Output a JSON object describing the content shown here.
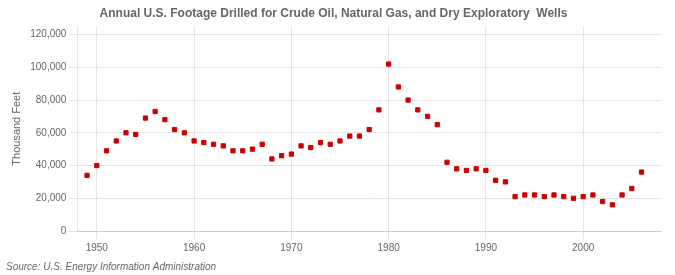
{
  "chart_data": {
    "type": "scatter",
    "title": "Annual U.S. Footage Drilled for Crude Oil, Natural Gas, and Dry Exploratory  Wells",
    "ylabel": "Thousand Feet",
    "annotations": [
      "Source: U.S. Energy Information Administration"
    ],
    "x": [
      1949,
      1950,
      1951,
      1952,
      1953,
      1954,
      1955,
      1956,
      1957,
      1958,
      1959,
      1960,
      1961,
      1962,
      1963,
      1964,
      1965,
      1966,
      1967,
      1968,
      1969,
      1970,
      1971,
      1972,
      1973,
      1974,
      1975,
      1976,
      1977,
      1978,
      1979,
      1980,
      1981,
      1982,
      1983,
      1984,
      1985,
      1986,
      1987,
      1988,
      1989,
      1990,
      1991,
      1992,
      1993,
      1994,
      1995,
      1996,
      1997,
      1998,
      1999,
      2000,
      2001,
      2002,
      2003,
      2004,
      2005,
      2006
    ],
    "values": [
      34000,
      40000,
      49000,
      55000,
      60000,
      59000,
      69000,
      73000,
      68000,
      62000,
      60000,
      55000,
      54000,
      53000,
      52000,
      49000,
      49000,
      50000,
      53000,
      44000,
      46000,
      47000,
      52000,
      51000,
      54000,
      53000,
      55000,
      58000,
      58000,
      62000,
      74000,
      102000,
      88000,
      80000,
      74000,
      70000,
      65000,
      42000,
      38000,
      37000,
      38000,
      37000,
      31000,
      30000,
      21000,
      22000,
      22000,
      21000,
      22000,
      21000,
      20000,
      21000,
      22000,
      18000,
      16000,
      22000,
      26000,
      36000
    ],
    "color": "#CC0000",
    "marker": "square",
    "xlim": [
      1948,
      2008
    ],
    "xticks": [
      1950,
      1960,
      1970,
      1980,
      1990,
      2000
    ],
    "ylim": [
      0,
      125000
    ],
    "yticks": [
      0,
      {
        "value": 20000,
        "label": "20,000"
      },
      {
        "value": 40000,
        "label": "40,000"
      },
      {
        "value": 60000,
        "label": "60,000"
      },
      {
        "value": 80000,
        "label": "80,000"
      },
      {
        "value": 100000,
        "label": "100,000"
      },
      {
        "value": 120000,
        "label": "120,000"
      }
    ],
    "grid": true
  }
}
